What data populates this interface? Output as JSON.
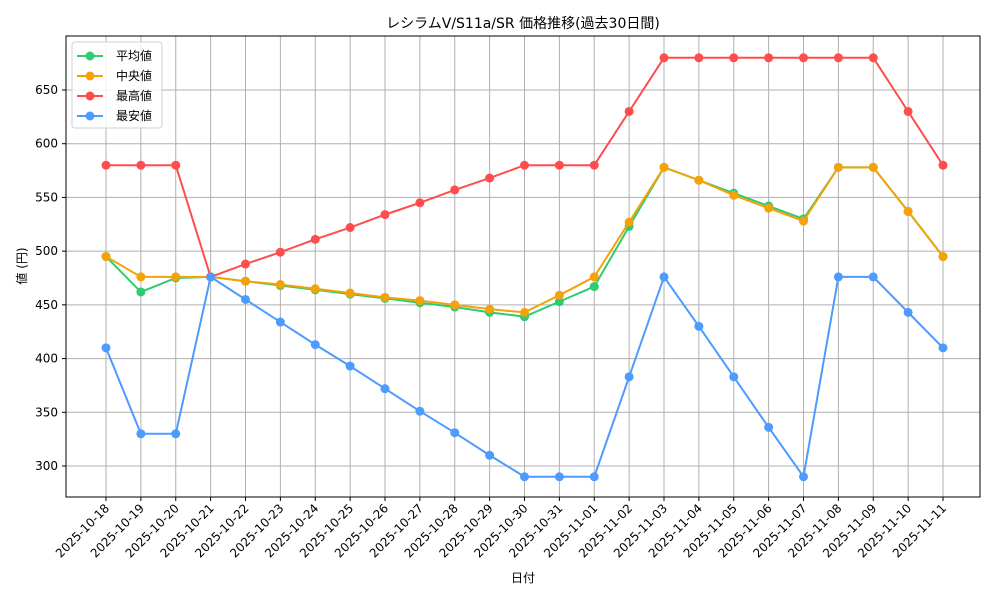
{
  "chart_data": {
    "type": "line",
    "title": "レシラムV/S11a/SR 価格推移(過去30日間)",
    "xlabel": "日付",
    "ylabel": "値 (円)",
    "ylim": [
      270,
      697
    ],
    "yticks": [
      300,
      350,
      400,
      450,
      500,
      550,
      600,
      650
    ],
    "grid": true,
    "legend_position": "upper left",
    "categories": [
      "2025-10-18",
      "2025-10-19",
      "2025-10-20",
      "2025-10-21",
      "2025-10-22",
      "2025-10-23",
      "2025-10-24",
      "2025-10-25",
      "2025-10-26",
      "2025-10-27",
      "2025-10-28",
      "2025-10-29",
      "2025-10-30",
      "2025-10-31",
      "2025-11-01",
      "2025-11-02",
      "2025-11-03",
      "2025-11-04",
      "2025-11-05",
      "2025-11-06",
      "2025-11-07",
      "2025-11-08",
      "2025-11-09",
      "2025-11-10",
      "2025-11-11"
    ],
    "series": [
      {
        "name": "平均値",
        "color": "#2ecc71",
        "values": [
          495,
          462,
          475,
          476,
          472,
          468,
          464,
          460,
          456,
          452,
          448,
          443,
          439,
          453,
          467,
          523,
          578,
          566,
          554,
          542,
          530,
          578,
          578,
          537,
          495
        ]
      },
      {
        "name": "中央値",
        "color": "#f5a20a",
        "values": [
          495,
          476,
          476,
          476,
          472,
          469,
          465,
          461,
          457,
          454,
          450,
          446,
          443,
          459,
          476,
          527,
          578,
          566,
          552,
          540,
          528,
          578,
          578,
          537,
          495
        ]
      },
      {
        "name": "最高値",
        "color": "#ff4d4d",
        "values": [
          580,
          580,
          580,
          476,
          488,
          499,
          511,
          522,
          534,
          545,
          557,
          568,
          580,
          580,
          580,
          630,
          680,
          680,
          680,
          680,
          680,
          680,
          680,
          630,
          580
        ]
      },
      {
        "name": "最安値",
        "color": "#4d9bff",
        "values": [
          410,
          330,
          330,
          476,
          455,
          434,
          413,
          393,
          372,
          351,
          331,
          310,
          290,
          290,
          290,
          383,
          476,
          430,
          383,
          336,
          290,
          476,
          476,
          443,
          410
        ]
      }
    ]
  }
}
